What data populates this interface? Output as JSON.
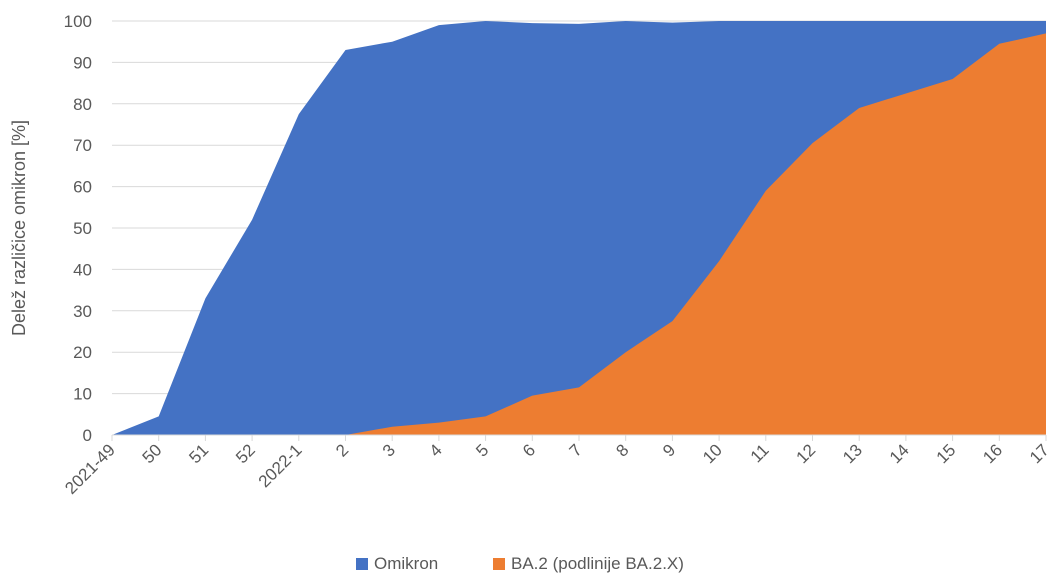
{
  "chart_data": {
    "type": "area",
    "title": "",
    "xlabel": "",
    "ylabel": "Delež različice omikron [%]",
    "ylim": [
      0,
      100
    ],
    "yticks": [
      0,
      10,
      20,
      30,
      40,
      50,
      60,
      70,
      80,
      90,
      100
    ],
    "grid": true,
    "legend_position": "bottom",
    "categories": [
      "2021-49",
      "50",
      "51",
      "52",
      "2022-1",
      "2",
      "3",
      "4",
      "5",
      "6",
      "7",
      "8",
      "9",
      "10",
      "11",
      "12",
      "13",
      "14",
      "15",
      "16",
      "17"
    ],
    "series": [
      {
        "name": "Omikron",
        "color": "#4472C4",
        "values": [
          0,
          4.5,
          33,
          52,
          77.5,
          93,
          95,
          99,
          100,
          99.5,
          99.3,
          100,
          99.6,
          100,
          100,
          100,
          100,
          100,
          100,
          100,
          100
        ]
      },
      {
        "name": "BA.2 (podlinije BA.2.X)",
        "color": "#ED7D31",
        "values": [
          0,
          0,
          0,
          0,
          0,
          0,
          2,
          3,
          4.5,
          9.5,
          11.5,
          20,
          27.5,
          42,
          59,
          70.5,
          79,
          82.5,
          86,
          94.5,
          97
        ]
      }
    ]
  }
}
